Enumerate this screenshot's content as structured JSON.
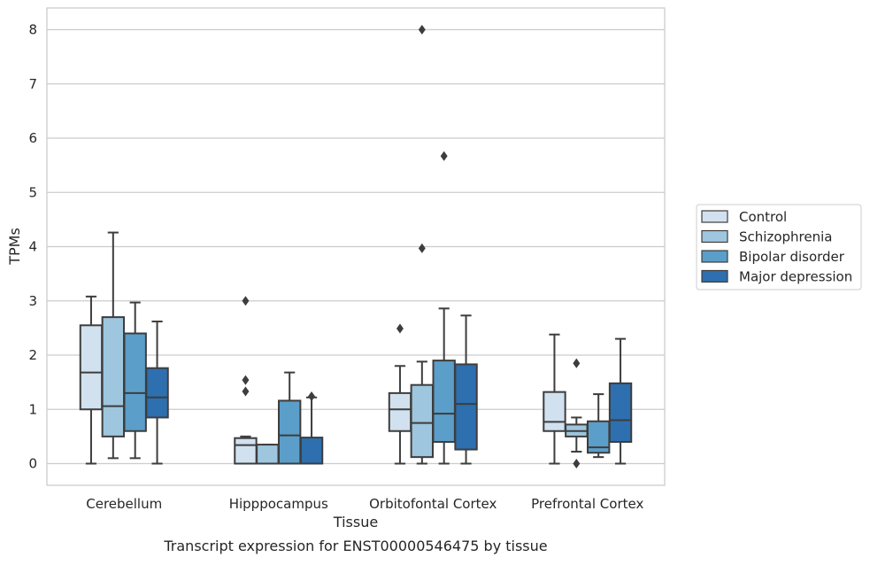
{
  "caption": "Transcript expression for ENST00000546475 by tissue",
  "chart_data": {
    "type": "box",
    "xlabel": "Tissue",
    "ylabel": "TPMs",
    "ylim": [
      -0.4,
      8.4
    ],
    "yticks": [
      0,
      1,
      2,
      3,
      4,
      5,
      6,
      7,
      8
    ],
    "grid": "horizontal",
    "legend_position": "right",
    "categories": [
      "Cerebellum",
      "Hipppocampus",
      "Orbitofontal Cortex",
      "Prefrontal Cortex"
    ],
    "series": [
      {
        "name": "Control",
        "color": "#d1e1ef",
        "boxes": [
          {
            "whislo": 0.0,
            "q1": 1.0,
            "med": 1.68,
            "q3": 2.55,
            "whishi": 3.08,
            "fliers": []
          },
          {
            "whislo": 0.0,
            "q1": 0.0,
            "med": 0.34,
            "q3": 0.47,
            "whishi": 0.5,
            "fliers": [
              3.0,
              1.54,
              1.33
            ]
          },
          {
            "whislo": 0.0,
            "q1": 0.6,
            "med": 1.0,
            "q3": 1.3,
            "whishi": 1.8,
            "fliers": [
              2.49
            ]
          },
          {
            "whislo": 0.0,
            "q1": 0.6,
            "med": 0.77,
            "q3": 1.32,
            "whishi": 2.38,
            "fliers": []
          }
        ]
      },
      {
        "name": "Schizophrenia",
        "color": "#9ec6de",
        "boxes": [
          {
            "whislo": 0.1,
            "q1": 0.5,
            "med": 1.06,
            "q3": 2.7,
            "whishi": 4.26,
            "fliers": []
          },
          {
            "whislo": 0.0,
            "q1": 0.0,
            "med": 0.0,
            "q3": 0.35,
            "whishi": 0.35,
            "fliers": []
          },
          {
            "whislo": 0.0,
            "q1": 0.12,
            "med": 0.75,
            "q3": 1.45,
            "whishi": 1.88,
            "fliers": [
              3.97,
              8.0
            ]
          },
          {
            "whislo": 0.22,
            "q1": 0.5,
            "med": 0.6,
            "q3": 0.72,
            "whishi": 0.85,
            "fliers": [
              0.0,
              1.85
            ]
          }
        ]
      },
      {
        "name": "Bipolar disorder",
        "color": "#5b9ec9",
        "boxes": [
          {
            "whislo": 0.1,
            "q1": 0.6,
            "med": 1.3,
            "q3": 2.4,
            "whishi": 2.97,
            "fliers": []
          },
          {
            "whislo": 0.0,
            "q1": 0.0,
            "med": 0.52,
            "q3": 1.16,
            "whishi": 1.68,
            "fliers": []
          },
          {
            "whislo": 0.0,
            "q1": 0.4,
            "med": 0.92,
            "q3": 1.9,
            "whishi": 2.86,
            "fliers": [
              5.67
            ]
          },
          {
            "whislo": 0.12,
            "q1": 0.2,
            "med": 0.3,
            "q3": 0.78,
            "whishi": 1.28,
            "fliers": []
          }
        ]
      },
      {
        "name": "Major depression",
        "color": "#2d6faf",
        "boxes": [
          {
            "whislo": 0.0,
            "q1": 0.85,
            "med": 1.22,
            "q3": 1.76,
            "whishi": 2.62,
            "fliers": []
          },
          {
            "whislo": 0.0,
            "q1": 0.0,
            "med": 0.0,
            "q3": 0.48,
            "whishi": 1.22,
            "fliers": [
              1.24
            ]
          },
          {
            "whislo": 0.0,
            "q1": 0.26,
            "med": 1.1,
            "q3": 1.83,
            "whishi": 2.73,
            "fliers": []
          },
          {
            "whislo": 0.0,
            "q1": 0.4,
            "med": 0.8,
            "q3": 1.48,
            "whishi": 2.3,
            "fliers": []
          }
        ]
      }
    ]
  }
}
